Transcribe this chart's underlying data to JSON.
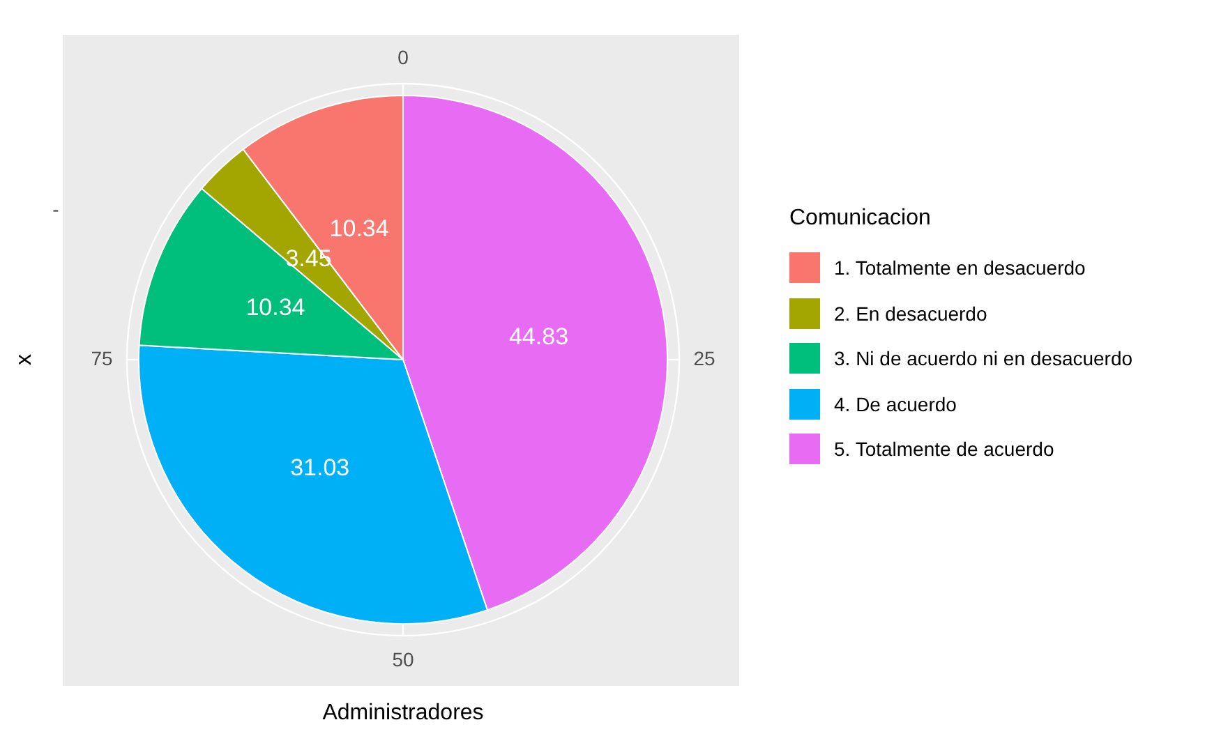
{
  "chart_data": {
    "type": "pie",
    "categories": [
      "1. Totalmente en desacuerdo",
      "2. En desacuerdo",
      "3. Ni de acuerdo ni en desacuerdo",
      "4. De acuerdo",
      "5. Totalmente de acuerdo"
    ],
    "values": [
      10.34,
      3.45,
      10.34,
      31.03,
      44.83
    ],
    "colors": [
      "#f8766d",
      "#a3a500",
      "#00bf7d",
      "#00b0f6",
      "#e76bf3"
    ],
    "data_labels": true,
    "legend": "right",
    "legend_title": "Comunicacion",
    "xlabel": "Administradores",
    "ylabel": "x",
    "annotations": [
      "0",
      "25",
      "50",
      "75",
      "-"
    ]
  }
}
